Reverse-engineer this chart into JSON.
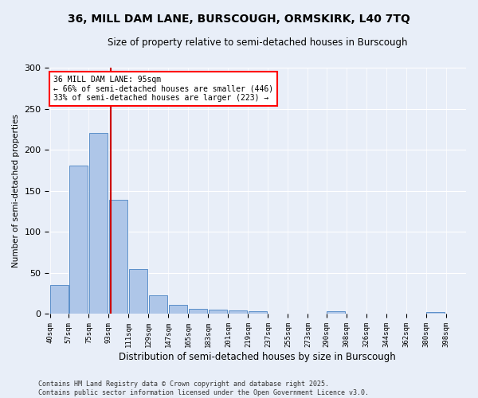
{
  "title": "36, MILL DAM LANE, BURSCOUGH, ORMSKIRK, L40 7TQ",
  "subtitle": "Size of property relative to semi-detached houses in Burscough",
  "xlabel": "Distribution of semi-detached houses by size in Burscough",
  "ylabel": "Number of semi-detached properties",
  "annotation_line1": "36 MILL DAM LANE: 95sqm",
  "annotation_line2": "← 66% of semi-detached houses are smaller (446)",
  "annotation_line3": "33% of semi-detached houses are larger (223) →",
  "property_size": 95,
  "bin_labels": [
    "40sqm",
    "57sqm",
    "75sqm",
    "93sqm",
    "111sqm",
    "129sqm",
    "147sqm",
    "165sqm",
    "183sqm",
    "201sqm",
    "219sqm",
    "237sqm",
    "255sqm",
    "273sqm",
    "290sqm",
    "308sqm",
    "326sqm",
    "344sqm",
    "362sqm",
    "380sqm",
    "398sqm"
  ],
  "bin_edges": [
    40,
    57,
    75,
    93,
    111,
    129,
    147,
    165,
    183,
    201,
    219,
    237,
    255,
    273,
    290,
    308,
    326,
    344,
    362,
    380,
    398
  ],
  "bar_values": [
    35,
    181,
    221,
    139,
    55,
    23,
    11,
    6,
    5,
    4,
    3,
    0,
    0,
    0,
    3,
    0,
    0,
    0,
    0,
    2,
    0
  ],
  "bar_color": "#aec6e8",
  "bar_edge_color": "#5b8fc9",
  "ref_line_color": "#cc0000",
  "background_color": "#e8eef8",
  "footer_line1": "Contains HM Land Registry data © Crown copyright and database right 2025.",
  "footer_line2": "Contains public sector information licensed under the Open Government Licence v3.0.",
  "ylim": [
    0,
    300
  ],
  "yticks": [
    0,
    50,
    100,
    150,
    200,
    250,
    300
  ]
}
